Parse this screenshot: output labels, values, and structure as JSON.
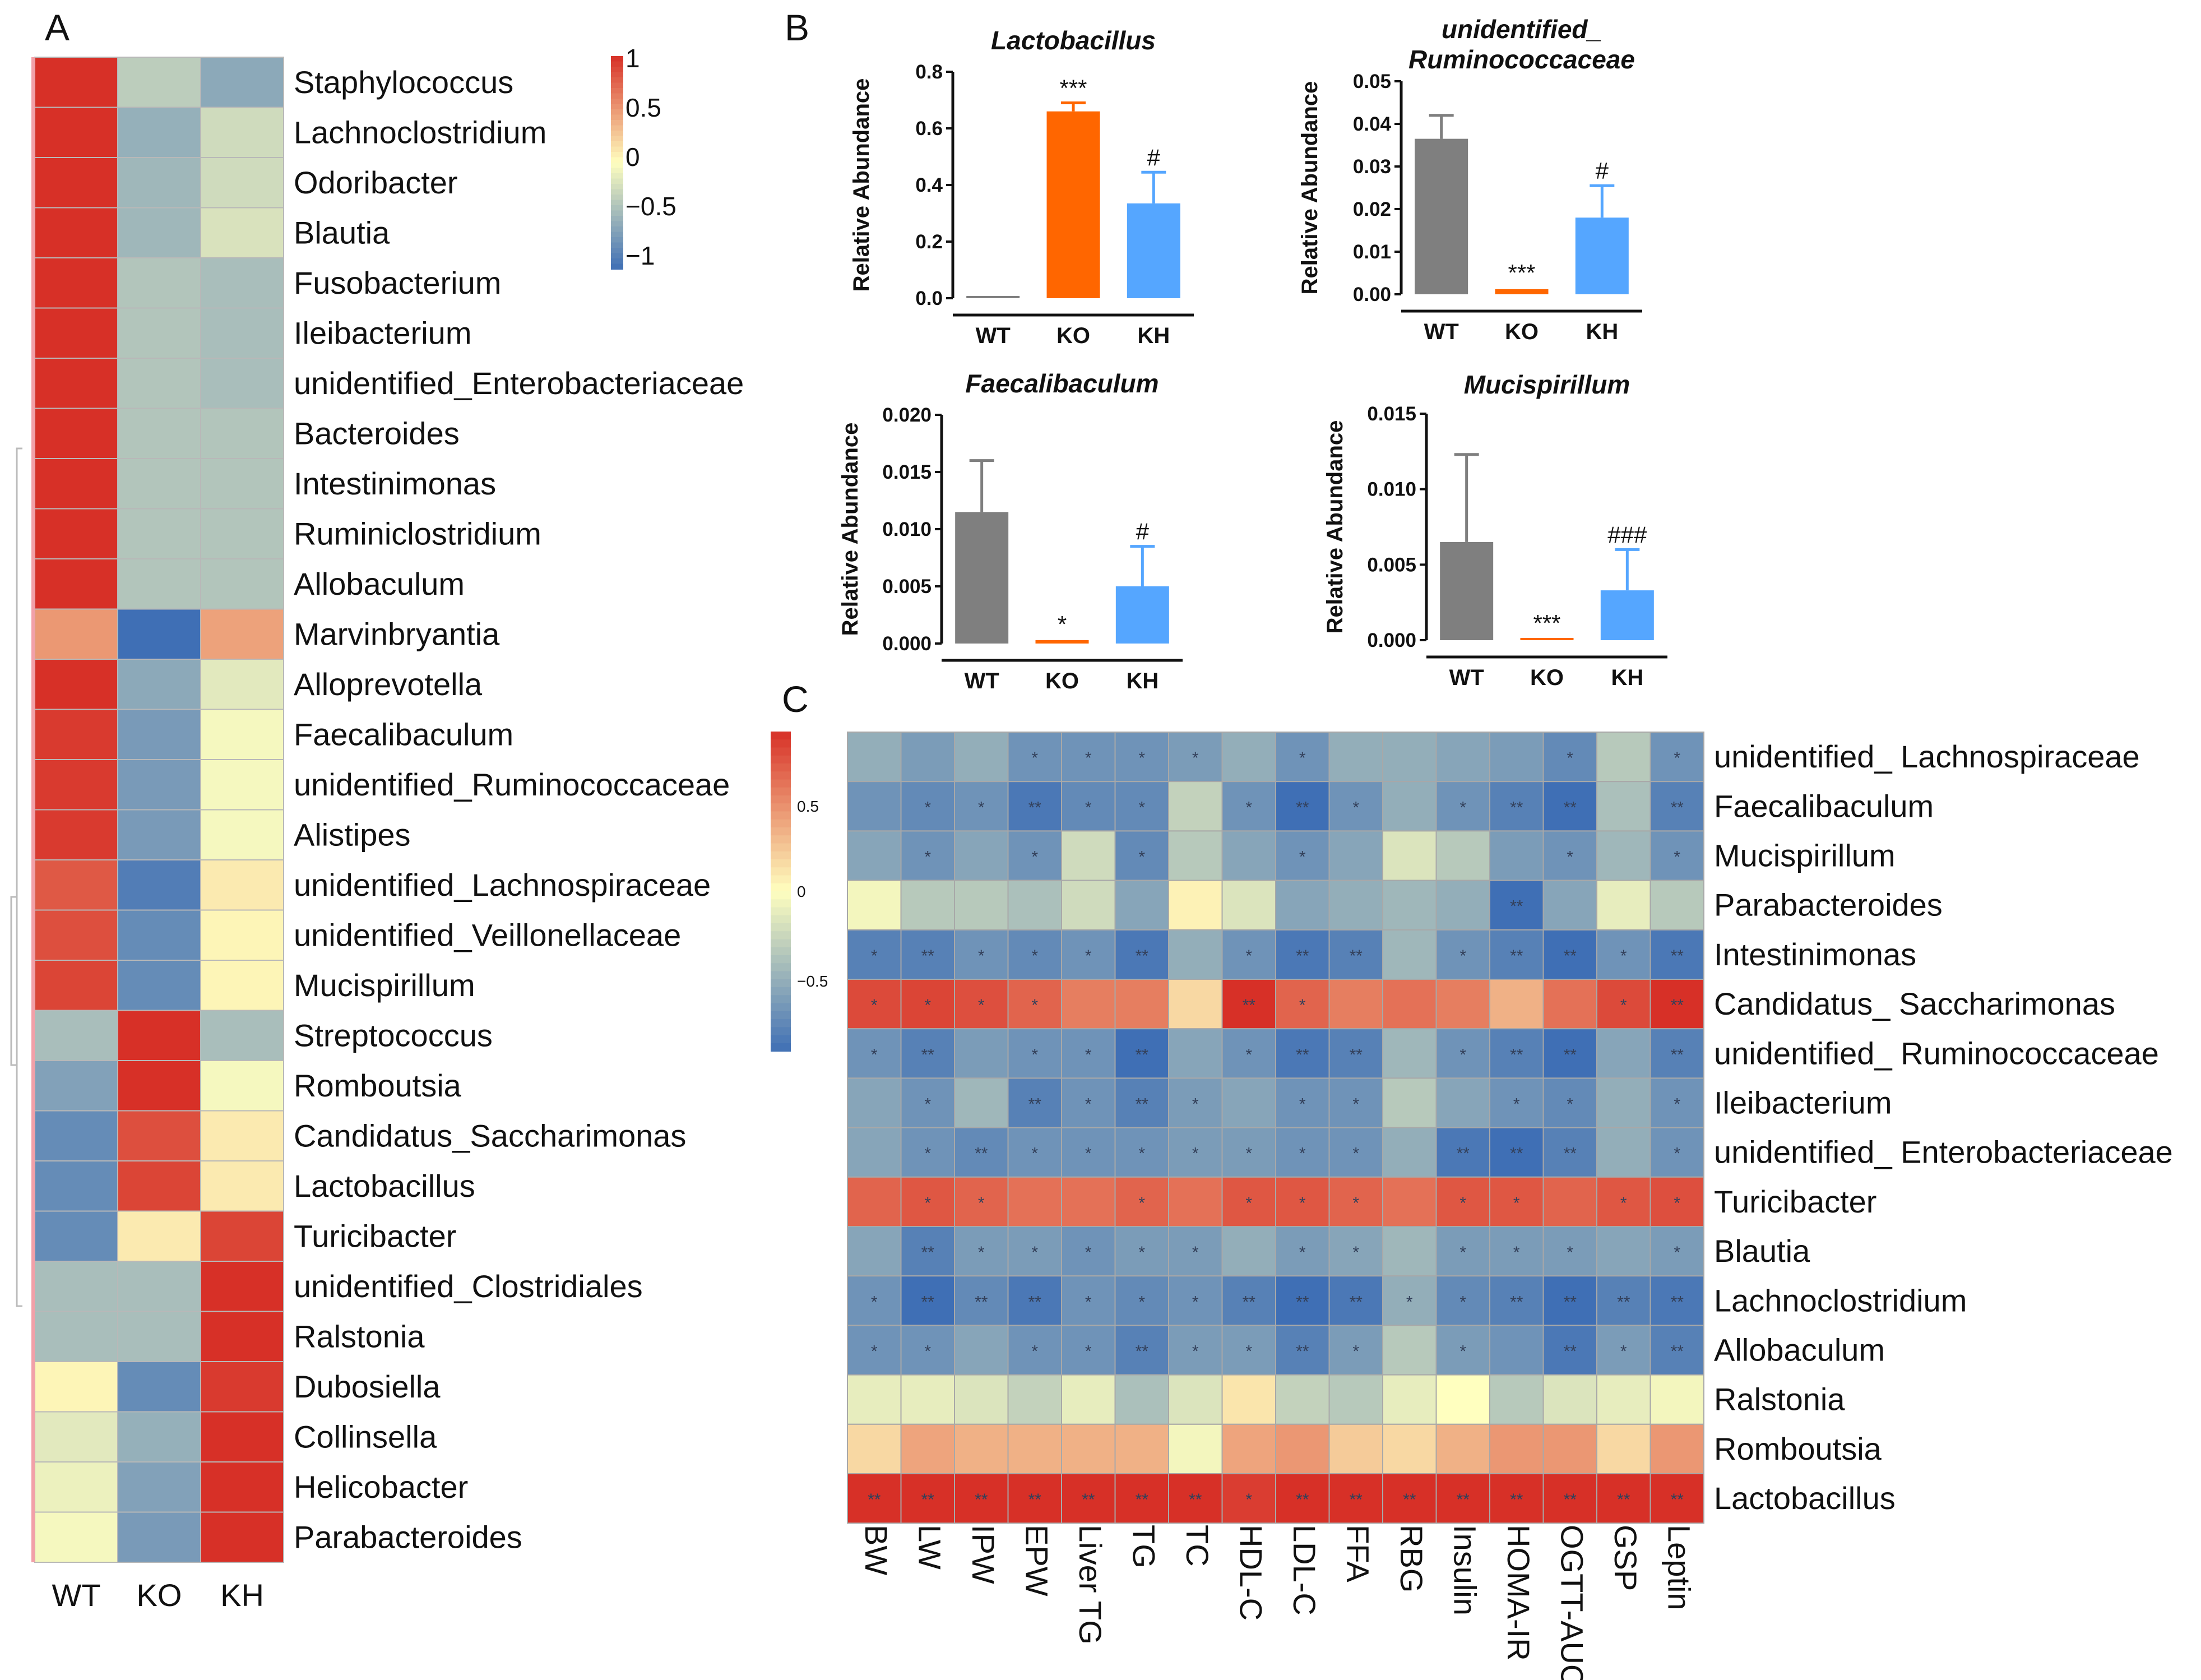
{
  "colors": {
    "low": "#3f6fb5",
    "mid": "#ffffbf",
    "high": "#d73027",
    "wt": "#7f7f7f",
    "ko": "#ff6600",
    "kh": "#55a6ff"
  },
  "panel_labels": {
    "a": "A",
    "b": "B",
    "c": "C"
  },
  "chart_data": [
    {
      "type": "heatmap",
      "panel": "A",
      "columns": [
        "WT",
        "KO",
        "KH"
      ],
      "rows": [
        "Staphylococcus",
        "Lachnoclostridium",
        "Odoribacter",
        "Blautia",
        "Fusobacterium",
        "Ileibacterium",
        "unidentified_Enterobacteriaceae",
        "Bacteroides",
        "Intestinimonas",
        "Ruminiclostridium",
        "Allobaculum",
        "Marvinbryantia",
        "Alloprevotella",
        "Faecalibaculum",
        "unidentified_Ruminococcaceae",
        "Alistipes",
        "unidentified_Lachnospiraceae",
        "unidentified_Veillonellaceae",
        "Mucispirillum",
        "Streptococcus",
        "Romboutsia",
        "Candidatus_Saccharimonas",
        "Lactobacillus",
        "Turicibacter",
        "unidentified_Clostridiales",
        "Ralstonia",
        "Dubosiella",
        "Collinsella",
        "Helicobacter",
        "Parabacteroides"
      ],
      "values": [
        [
          1,
          -0.35,
          -0.6
        ],
        [
          1,
          -0.55,
          -0.25
        ],
        [
          1,
          -0.5,
          -0.25
        ],
        [
          1,
          -0.5,
          -0.2
        ],
        [
          1,
          -0.4,
          -0.45
        ],
        [
          1,
          -0.4,
          -0.45
        ],
        [
          1,
          -0.4,
          -0.45
        ],
        [
          1,
          -0.4,
          -0.4
        ],
        [
          1,
          -0.4,
          -0.4
        ],
        [
          1,
          -0.4,
          -0.4
        ],
        [
          1,
          -0.4,
          -0.4
        ],
        [
          0.5,
          -1,
          0.45
        ],
        [
          1,
          -0.6,
          -0.15
        ],
        [
          0.95,
          -0.7,
          -0.05
        ],
        [
          0.95,
          -0.7,
          -0.05
        ],
        [
          0.95,
          -0.7,
          -0.05
        ],
        [
          0.8,
          -0.9,
          0.1
        ],
        [
          0.85,
          -0.8,
          0.05
        ],
        [
          0.9,
          -0.8,
          0.05
        ],
        [
          -0.45,
          1,
          -0.45
        ],
        [
          -0.65,
          1,
          -0.05
        ],
        [
          -0.8,
          0.85,
          0.1
        ],
        [
          -0.8,
          0.9,
          0.1
        ],
        [
          -0.8,
          0.1,
          0.9
        ],
        [
          -0.45,
          -0.45,
          1
        ],
        [
          -0.45,
          -0.45,
          1
        ],
        [
          0.05,
          -0.8,
          0.95
        ],
        [
          -0.15,
          -0.55,
          1
        ],
        [
          -0.1,
          -0.65,
          1
        ],
        [
          -0.05,
          -0.7,
          1
        ]
      ],
      "colorbar": {
        "ticks": [
          "1",
          "0.5",
          "0",
          "−0.5",
          "−1"
        ],
        "range": [
          -1,
          1
        ]
      }
    },
    {
      "type": "bar",
      "panel": "B",
      "title": "Lactobacillus",
      "ylabel": "Relative Abundance",
      "categories": [
        "WT",
        "KO",
        "KH"
      ],
      "values": [
        0.005,
        0.66,
        0.335
      ],
      "errors": [
        0.004,
        0.03,
        0.11
      ],
      "ylim": [
        0,
        0.8
      ],
      "yticks": [
        "0.0",
        "0.2",
        "0.4",
        "0.6",
        "0.8"
      ],
      "significance": [
        "",
        "***",
        "#"
      ]
    },
    {
      "type": "bar",
      "panel": "B",
      "title": "unidentified_",
      "title2": "Ruminococcaceae",
      "ylabel": "Relative Abundance",
      "categories": [
        "WT",
        "KO",
        "KH"
      ],
      "values": [
        0.0365,
        0.0012,
        0.018
      ],
      "errors": [
        0.0055,
        0.0004,
        0.0075
      ],
      "ylim": [
        0,
        0.05
      ],
      "yticks": [
        "0.00",
        "0.01",
        "0.02",
        "0.03",
        "0.04",
        "0.05"
      ],
      "significance": [
        "",
        "***",
        "#"
      ]
    },
    {
      "type": "bar",
      "panel": "B",
      "title": "Faecalibaculum",
      "ylabel": "Relative Abundance",
      "categories": [
        "WT",
        "KO",
        "KH"
      ],
      "values": [
        0.0115,
        0.0003,
        0.005
      ],
      "errors": [
        0.0045,
        0.0001,
        0.0035
      ],
      "ylim": [
        0,
        0.02
      ],
      "yticks": [
        "0.000",
        "0.005",
        "0.010",
        "0.015",
        "0.020"
      ],
      "significance": [
        "",
        "*",
        "#"
      ]
    },
    {
      "type": "bar",
      "panel": "B",
      "title": "Mucispirillum",
      "ylabel": "Relative Abundance",
      "categories": [
        "WT",
        "KO",
        "KH"
      ],
      "values": [
        0.0065,
        0.0001,
        0.0033
      ],
      "errors": [
        0.0058,
        5e-05,
        0.0027
      ],
      "ylim": [
        0,
        0.015
      ],
      "yticks": [
        "0.000",
        "0.005",
        "0.010",
        "0.015"
      ],
      "significance": [
        "",
        "***",
        "###"
      ]
    },
    {
      "type": "heatmap",
      "panel": "C",
      "columns": [
        "BW",
        "LW",
        "IPW",
        "EPW",
        "Liver TG",
        "TG",
        "TC",
        "HDL-C",
        "LDL-C",
        "FFA",
        "RBG",
        "Insulin",
        "HOMA-IR",
        "OGTT-AUC",
        "GSP",
        "Leptin"
      ],
      "rows": [
        "unidentified_ Lachnospiraceae",
        "Faecalibaculum",
        "Mucispirillum",
        "Parabacteroides",
        "Intestinimonas",
        "Candidatus_ Saccharimonas",
        "unidentified_ Ruminococcaceae",
        "Ileibacterium",
        "unidentified_ Enterobacteriaceae",
        "Turicibacter",
        "Blautia",
        "Lachnoclostridium",
        "Allobaculum",
        "Ralstonia",
        "Romboutsia",
        "Lactobacillus"
      ],
      "values": [
        [
          -0.45,
          -0.55,
          -0.45,
          -0.6,
          -0.6,
          -0.6,
          -0.55,
          -0.45,
          -0.6,
          -0.45,
          -0.45,
          -0.5,
          -0.55,
          -0.65,
          -0.3,
          -0.6
        ],
        [
          -0.6,
          -0.65,
          -0.6,
          -0.75,
          -0.65,
          -0.65,
          -0.25,
          -0.6,
          -0.8,
          -0.6,
          -0.45,
          -0.6,
          -0.7,
          -0.85,
          -0.35,
          -0.7
        ],
        [
          -0.5,
          -0.6,
          -0.5,
          -0.6,
          -0.2,
          -0.65,
          -0.3,
          -0.5,
          -0.6,
          -0.5,
          -0.15,
          -0.3,
          -0.55,
          -0.6,
          -0.4,
          -0.6
        ],
        [
          -0.05,
          -0.3,
          -0.3,
          -0.35,
          -0.2,
          -0.5,
          0.05,
          -0.15,
          -0.5,
          -0.45,
          -0.4,
          -0.45,
          -0.8,
          -0.5,
          -0.1,
          -0.3
        ],
        [
          -0.7,
          -0.7,
          -0.6,
          -0.65,
          -0.6,
          -0.75,
          -0.45,
          -0.6,
          -0.75,
          -0.7,
          -0.4,
          -0.6,
          -0.7,
          -0.8,
          -0.6,
          -0.75
        ],
        [
          0.7,
          0.72,
          0.68,
          0.6,
          0.5,
          0.5,
          0.15,
          0.85,
          0.6,
          0.5,
          0.55,
          0.5,
          0.3,
          0.55,
          0.7,
          0.88
        ],
        [
          -0.6,
          -0.7,
          -0.55,
          -0.6,
          -0.6,
          -0.8,
          -0.5,
          -0.6,
          -0.75,
          -0.7,
          -0.4,
          -0.6,
          -0.7,
          -0.8,
          -0.5,
          -0.7
        ],
        [
          -0.5,
          -0.6,
          -0.4,
          -0.7,
          -0.6,
          -0.7,
          -0.55,
          -0.5,
          -0.6,
          -0.6,
          -0.3,
          -0.5,
          -0.6,
          -0.65,
          -0.45,
          -0.6
        ],
        [
          -0.5,
          -0.6,
          -0.65,
          -0.6,
          -0.6,
          -0.6,
          -0.55,
          -0.55,
          -0.6,
          -0.6,
          -0.45,
          -0.75,
          -0.95,
          -0.7,
          -0.45,
          -0.6
        ],
        [
          0.6,
          0.65,
          0.6,
          0.55,
          0.55,
          0.6,
          0.55,
          0.65,
          0.65,
          0.6,
          0.55,
          0.65,
          0.65,
          0.6,
          0.65,
          0.68
        ],
        [
          -0.5,
          -0.7,
          -0.55,
          -0.55,
          -0.6,
          -0.55,
          -0.55,
          -0.45,
          -0.55,
          -0.5,
          -0.4,
          -0.55,
          -0.55,
          -0.55,
          -0.5,
          -0.55
        ],
        [
          -0.6,
          -0.8,
          -0.65,
          -0.75,
          -0.6,
          -0.65,
          -0.6,
          -0.7,
          -0.8,
          -0.75,
          -0.45,
          -0.65,
          -0.7,
          -0.8,
          -0.7,
          -0.75
        ],
        [
          -0.6,
          -0.6,
          -0.5,
          -0.6,
          -0.6,
          -0.7,
          -0.55,
          -0.55,
          -0.7,
          -0.55,
          -0.3,
          -0.55,
          -0.6,
          -0.75,
          -0.55,
          -0.7
        ],
        [
          -0.1,
          -0.1,
          -0.15,
          -0.25,
          -0.1,
          -0.35,
          -0.15,
          0.1,
          -0.25,
          -0.3,
          -0.1,
          0,
          -0.3,
          -0.15,
          -0.1,
          -0.05
        ],
        [
          0.15,
          0.35,
          0.3,
          0.3,
          0.3,
          0.3,
          -0.05,
          0.35,
          0.4,
          0.2,
          0.15,
          0.3,
          0.4,
          0.4,
          0.15,
          0.4
        ],
        [
          0.8,
          0.8,
          0.82,
          0.85,
          0.9,
          0.85,
          0.85,
          0.75,
          0.85,
          0.85,
          0.8,
          0.9,
          0.85,
          0.92,
          0.8,
          0.85
        ]
      ],
      "stars": [
        [
          "",
          "",
          "",
          "*",
          "*",
          "*",
          "*",
          "",
          "*",
          "",
          "",
          "",
          "",
          "*",
          "",
          "*"
        ],
        [
          "",
          "*",
          "*",
          "**",
          "*",
          "*",
          "",
          "*",
          "**",
          "*",
          "",
          "*",
          "**",
          "**",
          "",
          "**"
        ],
        [
          "",
          "*",
          "",
          "*",
          "",
          "*",
          "",
          "",
          "*",
          "",
          "",
          "",
          "",
          "*",
          "",
          "*"
        ],
        [
          "",
          "",
          "",
          "",
          "",
          "",
          "",
          "",
          "",
          "",
          "",
          "",
          "**",
          "",
          "",
          ""
        ],
        [
          "*",
          "**",
          "*",
          "*",
          "*",
          "**",
          "",
          "*",
          "**",
          "**",
          "",
          "*",
          "**",
          "**",
          "*",
          "**"
        ],
        [
          "*",
          "*",
          "*",
          "*",
          "",
          "",
          "",
          "**",
          "*",
          "",
          "",
          "",
          "",
          "",
          "*",
          "**"
        ],
        [
          "*",
          "**",
          "",
          "*",
          "*",
          "**",
          "",
          "*",
          "**",
          "**",
          "",
          "*",
          "**",
          "**",
          "",
          "**"
        ],
        [
          "",
          "*",
          "",
          "**",
          "*",
          "**",
          "*",
          "",
          "*",
          "*",
          "",
          "",
          "*",
          "*",
          "",
          "*"
        ],
        [
          "",
          "*",
          "**",
          "*",
          "*",
          "*",
          "*",
          "*",
          "*",
          "*",
          "",
          "**",
          "**",
          "**",
          "",
          "*"
        ],
        [
          "",
          "*",
          "*",
          "",
          "",
          "*",
          "",
          "*",
          "*",
          "*",
          "",
          "*",
          "*",
          "",
          "*",
          "*"
        ],
        [
          "",
          "**",
          "*",
          "*",
          "*",
          "*",
          "*",
          "",
          "*",
          "*",
          "",
          "*",
          "*",
          "*",
          "",
          "*"
        ],
        [
          "*",
          "**",
          "**",
          "**",
          "*",
          "*",
          "*",
          "**",
          "**",
          "**",
          "*",
          "*",
          "**",
          "**",
          "**",
          "**"
        ],
        [
          "*",
          "*",
          "",
          "*",
          "*",
          "**",
          "*",
          "*",
          "**",
          "*",
          "",
          "*",
          "",
          "**",
          "*",
          "**"
        ],
        [
          "",
          "",
          "",
          "",
          "",
          "",
          "",
          "",
          "",
          "",
          "",
          "",
          "",
          "",
          "",
          ""
        ],
        [
          "",
          "",
          "",
          "",
          "",
          "",
          "",
          "",
          "",
          "",
          "",
          "",
          "",
          "",
          "",
          ""
        ],
        [
          "**",
          "**",
          "**",
          "**",
          "**",
          "**",
          "**",
          "*",
          "**",
          "**",
          "**",
          "**",
          "**",
          "**",
          "**",
          "**"
        ]
      ],
      "colorbar": {
        "ticks": [
          "0.5",
          "0",
          "−0.5"
        ],
        "range": [
          -0.8,
          0.8
        ]
      }
    }
  ]
}
